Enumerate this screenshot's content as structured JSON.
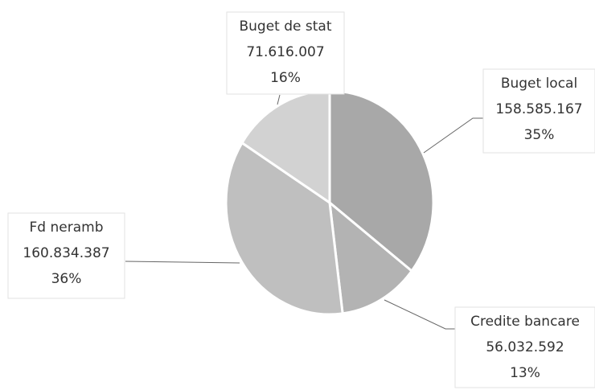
{
  "chart_data": {
    "type": "pie",
    "categories": [
      "Buget local",
      "Credite bancare",
      "Fd neramb",
      "Buget de stat"
    ],
    "values": [
      158585167,
      56032592,
      160834387,
      71616007
    ],
    "value_labels": [
      "158.585.167",
      "56.032.592",
      "160.834.387",
      "71.616.007"
    ],
    "percents": [
      35,
      13,
      36,
      16
    ],
    "percent_labels": [
      "35%",
      "13%",
      "36%",
      "16%"
    ],
    "colors": [
      "#a8a8a8",
      "#b3b3b3",
      "#bfbfbf",
      "#d2d2d2"
    ]
  }
}
